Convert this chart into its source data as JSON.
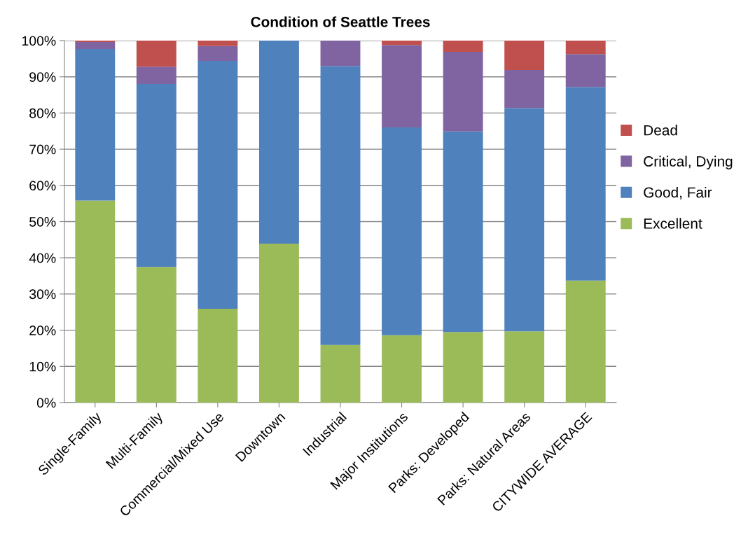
{
  "chart_data": {
    "type": "bar",
    "title": "Condition of Seattle Trees",
    "stacked": true,
    "categories": [
      "Single-Family",
      "Multi-Family",
      "Commercial/Mixed Use",
      "Downtown",
      "Industrial",
      "Major Institutions",
      "Parks: Developed",
      "Parks: Natural Areas",
      "CITYWIDE AVERAGE"
    ],
    "series": [
      {
        "name": "Excellent",
        "color": "#9bbb59",
        "values": [
          55.8,
          37.5,
          25.9,
          43.9,
          15.9,
          18.6,
          19.5,
          19.7,
          33.7
        ]
      },
      {
        "name": "Good, Fair",
        "color": "#4f81bd",
        "values": [
          41.9,
          50.5,
          68.5,
          56.1,
          77.1,
          57.4,
          55.4,
          61.7,
          53.5
        ]
      },
      {
        "name": "Critical, Dying",
        "color": "#8064a2",
        "values": [
          1.9,
          4.8,
          4.1,
          0,
          7.0,
          22.8,
          22.0,
          10.5,
          9.1
        ]
      },
      {
        "name": "Dead",
        "color": "#c0504d",
        "values": [
          0.4,
          7.2,
          1.5,
          0,
          0,
          1.2,
          3.1,
          8.1,
          3.7
        ]
      }
    ],
    "ylim": [
      0,
      100
    ],
    "yticks": [
      {
        "value": 0,
        "label": "0%"
      },
      {
        "value": 10,
        "label": "10%"
      },
      {
        "value": 20,
        "label": "20%"
      },
      {
        "value": 30,
        "label": "30%"
      },
      {
        "value": 40,
        "label": "40%"
      },
      {
        "value": 50,
        "label": "50%"
      },
      {
        "value": 60,
        "label": "60%"
      },
      {
        "value": 70,
        "label": "70%"
      },
      {
        "value": 80,
        "label": "80%"
      },
      {
        "value": 90,
        "label": "90%"
      },
      {
        "value": 100,
        "label": "100%"
      }
    ],
    "grid": "y",
    "legend": "right"
  }
}
